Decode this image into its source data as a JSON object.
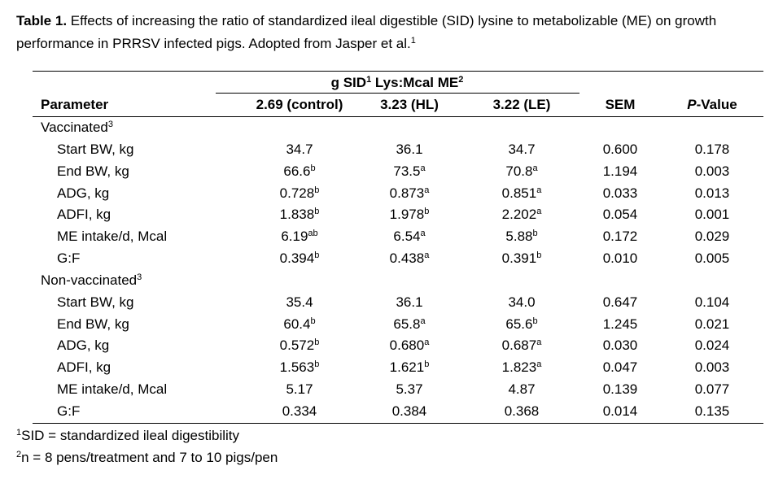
{
  "title": {
    "label": "Table 1.",
    "text": "Effects of increasing the ratio of standardized ileal digestible (SID) lysine to metabolizable (ME) on growth performance in PRRSV infected pigs. Adopted from Jasper et al.",
    "sup": "1"
  },
  "table": {
    "group_header": {
      "parts": [
        {
          "text": "g SID",
          "sup": "1"
        },
        {
          "text": " Lys:Mcal ME",
          "sup": "2"
        }
      ]
    },
    "columns": [
      {
        "text": "Parameter"
      },
      {
        "text": "2.69 (control)"
      },
      {
        "text": "3.23 (HL)"
      },
      {
        "text": "3.22 (LE)"
      },
      {
        "text": "SEM"
      },
      {
        "italic": "P",
        "text": "-Value"
      }
    ],
    "sections": [
      {
        "label": {
          "text": "Vaccinated",
          "sup": "3"
        },
        "rows": [
          [
            "Start BW, kg",
            "34.7",
            "36.1",
            "34.7",
            "0.600",
            "0.178"
          ],
          [
            "End BW, kg",
            {
              "text": "66.6",
              "sup": "b"
            },
            {
              "text": "73.5",
              "sup": "a"
            },
            {
              "text": "70.8",
              "sup": "a"
            },
            "1.194",
            "0.003"
          ],
          [
            "ADG, kg",
            {
              "text": "0.728",
              "sup": "b"
            },
            {
              "text": "0.873",
              "sup": "a"
            },
            {
              "text": "0.851",
              "sup": "a"
            },
            "0.033",
            "0.013"
          ],
          [
            "ADFI, kg",
            {
              "text": "1.838",
              "sup": "b"
            },
            {
              "text": "1.978",
              "sup": "b"
            },
            {
              "text": "2.202",
              "sup": "a"
            },
            "0.054",
            "0.001"
          ],
          [
            "ME intake/d, Mcal",
            {
              "text": "6.19",
              "sup": "ab"
            },
            {
              "text": "6.54",
              "sup": "a"
            },
            {
              "text": "5.88",
              "sup": "b"
            },
            "0.172",
            "0.029"
          ],
          [
            "G:F",
            {
              "text": "0.394",
              "sup": "b"
            },
            {
              "text": "0.438",
              "sup": "a"
            },
            {
              "text": "0.391",
              "sup": "b"
            },
            "0.010",
            "0.005"
          ]
        ]
      },
      {
        "label": {
          "text": "Non-vaccinated",
          "sup": "3"
        },
        "rows": [
          [
            "Start BW, kg",
            "35.4",
            "36.1",
            "34.0",
            "0.647",
            "0.104"
          ],
          [
            "End BW, kg",
            {
              "text": "60.4",
              "sup": "b"
            },
            {
              "text": "65.8",
              "sup": "a"
            },
            {
              "text": "65.6",
              "sup": "b"
            },
            "1.245",
            "0.021"
          ],
          [
            "ADG, kg",
            {
              "text": "0.572",
              "sup": "b"
            },
            {
              "text": "0.680",
              "sup": "a"
            },
            {
              "text": "0.687",
              "sup": "a"
            },
            "0.030",
            "0.024"
          ],
          [
            "ADFI, kg",
            {
              "text": "1.563",
              "sup": "b"
            },
            {
              "text": "1.621",
              "sup": "b"
            },
            {
              "text": "1.823",
              "sup": "a"
            },
            "0.047",
            "0.003"
          ],
          [
            "ME intake/d, Mcal",
            "5.17",
            "5.37",
            "4.87",
            "0.139",
            "0.077"
          ],
          [
            "G:F",
            "0.334",
            "0.384",
            "0.368",
            "0.014",
            "0.135"
          ]
        ]
      }
    ]
  },
  "footnotes": [
    {
      "sup": "1",
      "text": "SID = standardized ileal digestibility"
    },
    {
      "sup": "2",
      "text": "n = 8 pens/treatment and 7 to 10 pigs/pen"
    }
  ]
}
